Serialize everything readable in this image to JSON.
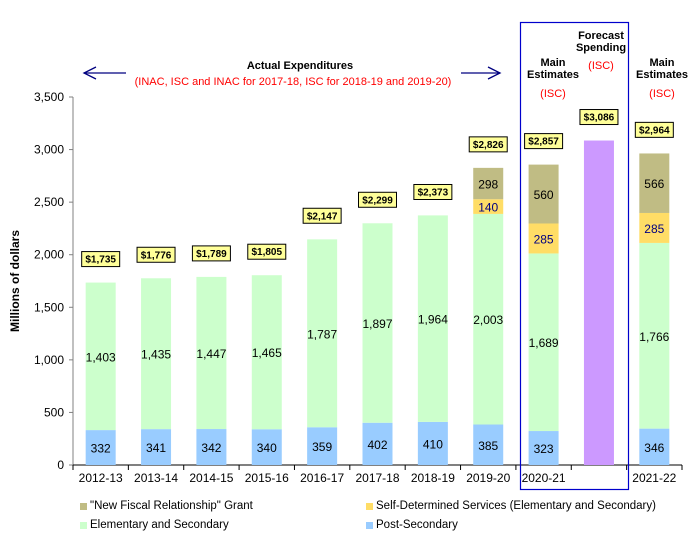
{
  "chart_data": {
    "type": "bar",
    "stacked": true,
    "title": "",
    "xlabel": "",
    "ylabel": "Millions of dollars",
    "ylim": [
      0,
      3500
    ],
    "yticks": [
      0,
      500,
      1000,
      1500,
      2000,
      2500,
      3000,
      3500
    ],
    "ytick_labels": [
      "0",
      "500",
      "1,000",
      "1,500",
      "2,000",
      "2,500",
      "3,000",
      "3,500"
    ],
    "grid": false,
    "categories": [
      "2012-13",
      "2013-14",
      "2014-15",
      "2015-16",
      "2016-17",
      "2017-18",
      "2018-19",
      "2019-20",
      "2020-21",
      "",
      "2021-22"
    ],
    "series": [
      {
        "name": "Post-Secondary",
        "color": "#99ccff",
        "label_color": "#000000",
        "values": [
          332,
          341,
          342,
          340,
          359,
          402,
          410,
          385,
          323,
          null,
          346
        ]
      },
      {
        "name": "Elementary and Secondary",
        "color": "#ccffcc",
        "label_color": "#000000",
        "values": [
          1403,
          1435,
          1447,
          1465,
          1787,
          1897,
          1964,
          2003,
          1689,
          null,
          1766
        ]
      },
      {
        "name": "Self-Determined Services (Elementary and Secondary)",
        "color": "#ffdd66",
        "label_color": "#000080",
        "values": [
          null,
          null,
          null,
          null,
          null,
          null,
          null,
          140,
          285,
          null,
          285
        ]
      },
      {
        "name": "\"New Fiscal Relationship\" Grant",
        "color": "#c0bc84",
        "label_color": "#000000",
        "values": [
          null,
          null,
          null,
          null,
          null,
          null,
          null,
          298,
          560,
          null,
          566
        ]
      },
      {
        "name": "Forecast Spending",
        "color": "#cc99ff",
        "label_color": "#000000",
        "show_in_legend": false,
        "values": [
          null,
          null,
          null,
          null,
          null,
          null,
          null,
          null,
          null,
          3086,
          null
        ]
      }
    ],
    "totals": [
      "$1,735",
      "$1,776",
      "$1,789",
      "$1,805",
      "$2,147",
      "$2,299",
      "$2,373",
      "$2,826",
      "$2,857",
      "$3,086",
      "$2,964"
    ],
    "total_values": [
      1735,
      1776,
      1789,
      1805,
      2147,
      2299,
      2373,
      2826,
      2857,
      3086,
      2964
    ],
    "legend": {
      "placement": "bottom",
      "entries": [
        {
          "name": "\"New Fiscal Relationship\" Grant",
          "color": "#c0bc84"
        },
        {
          "name": "Self-Determined Services (Elementary and Secondary)",
          "color": "#ffdd66"
        },
        {
          "name": "Elementary and Secondary",
          "color": "#ccffcc"
        },
        {
          "name": "Post-Secondary",
          "color": "#99ccff"
        }
      ]
    },
    "annotations": {
      "actual": {
        "title": "Actual Expenditures",
        "subtitle": "(INAC, ISC and INAC for 2017-18, ISC for 2018-19 and 2019-20)"
      },
      "main_estimates_2020": {
        "line1": "Main",
        "line2": "Estimates",
        "org": "(ISC)"
      },
      "forecast": {
        "line1": "Forecast",
        "line2": "Spending",
        "org": "(ISC)"
      },
      "main_estimates_2021": {
        "line1": "Main",
        "line2": "Estimates",
        "org": "(ISC)"
      }
    },
    "colors": {
      "total_box_fill": "#ffff99",
      "highlight_box": "#0000cc",
      "arrow": "#000080",
      "axis": "#808080",
      "annotation_red": "#ff0000"
    }
  }
}
